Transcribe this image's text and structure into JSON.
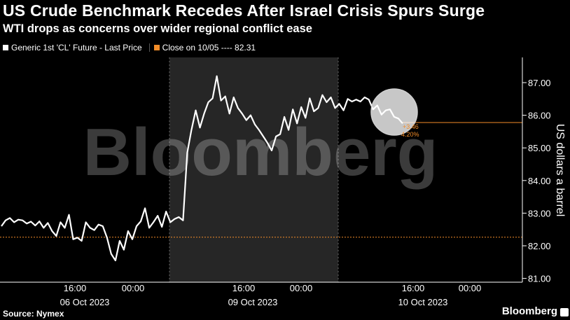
{
  "header": {
    "title": "US Crude Benchmark Recedes After Israel Crisis Spurs Surge",
    "subtitle": "WTI drops as concerns over wider regional conflict ease"
  },
  "legend": {
    "series_label": "Generic 1st 'CL' Future - Last Price",
    "close_label": "Close on 10/05 ---- 82.31"
  },
  "watermark": "Bloomberg",
  "footer": {
    "source": "Source: Nymex",
    "brand": "Bloomberg"
  },
  "colors": {
    "background": "#000000",
    "line": "#ffffff",
    "reference": "#f28c28",
    "shade": "#262626",
    "grid": "#666666"
  },
  "annotations": {
    "change_abs": "+3.46",
    "change_pct": "4.20%"
  },
  "chart_data": {
    "type": "line",
    "ylabel": "US dollars a barrel",
    "ylim": [
      80.7,
      87.6
    ],
    "yticks": [
      "87.00",
      "86.00",
      "85.00",
      "84.00",
      "83.00",
      "82.00",
      "81.00"
    ],
    "ytick_values": [
      87,
      86,
      85,
      84,
      83,
      82,
      81
    ],
    "time_ticks": [
      "16:00",
      "00:00",
      "16:00",
      "00:00",
      "16:00",
      "00:00"
    ],
    "date_labels": [
      "06 Oct 2023",
      "09 Oct 2023",
      "10 Oct 2023"
    ],
    "reference_line": {
      "label": "Close on 10/05",
      "value": 82.31
    },
    "last_value_marker": 85.75,
    "series": [
      {
        "name": "Generic 1st 'CL' Future - Last Price",
        "values": [
          82.6,
          82.78,
          82.85,
          82.72,
          82.8,
          82.78,
          82.68,
          82.74,
          82.62,
          82.75,
          82.55,
          82.7,
          82.45,
          82.3,
          82.72,
          82.55,
          82.95,
          82.2,
          82.25,
          82.15,
          82.72,
          82.55,
          82.48,
          82.65,
          82.6,
          82.25,
          81.75,
          81.55,
          82.15,
          81.88,
          82.45,
          82.2,
          82.6,
          82.75,
          83.15,
          82.55,
          82.72,
          82.92,
          82.58,
          83.05,
          82.72,
          82.82,
          82.88,
          82.78,
          84.85,
          85.55,
          86.15,
          85.62,
          86.05,
          86.4,
          86.52,
          87.2,
          86.45,
          86.58,
          86.05,
          86.55,
          86.22,
          86.05,
          85.85,
          86.0,
          85.72,
          85.55,
          85.35,
          85.15,
          84.92,
          85.35,
          85.42,
          85.95,
          85.55,
          86.18,
          85.75,
          86.25,
          85.92,
          86.52,
          86.12,
          86.22,
          86.62,
          86.4,
          86.55,
          86.22,
          86.35,
          86.15,
          86.5,
          86.42,
          86.48,
          86.42,
          86.55,
          86.48,
          86.18,
          86.3,
          86.02,
          86.15,
          86.18,
          85.95,
          85.9,
          85.75
        ]
      }
    ]
  }
}
